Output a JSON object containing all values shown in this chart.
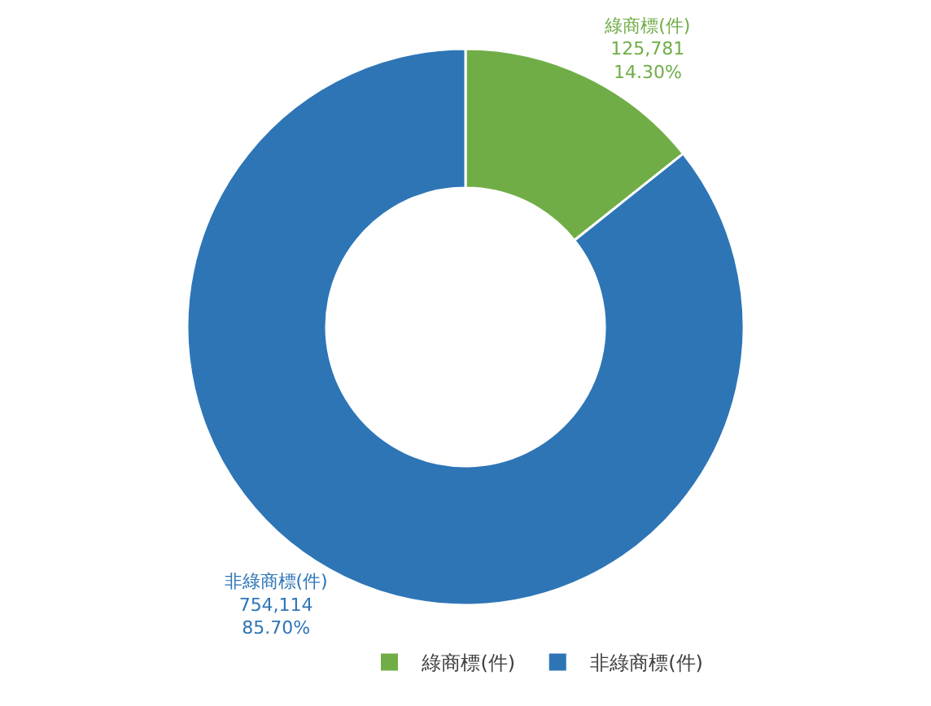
{
  "chart_data": {
    "type": "donut",
    "categories": [
      "綠商標(件)",
      "非綠商標(件)"
    ],
    "values": [
      125781,
      754114
    ],
    "colors": [
      "#70ad47",
      "#2e75b6"
    ],
    "value_labels": [
      "125,781\n14.30%",
      "754,114\n85.70%"
    ],
    "legend": "bottom"
  }
}
